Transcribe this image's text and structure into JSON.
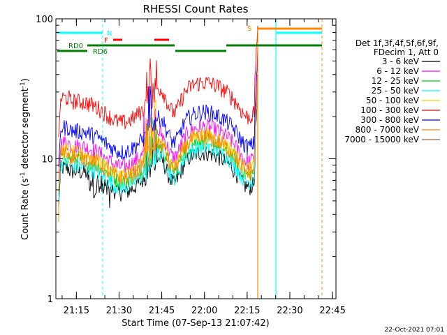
{
  "chart_data": {
    "type": "line",
    "title": "RHESSI Count Rates",
    "xlabel": "Start Time (07-Sep-13 21:07:42)",
    "ylabel": "Count Rate (s⁻¹ detector segment⁻¹)",
    "ylabel_main": "Count Rate (s",
    "ylabel_sup1": "-1",
    "ylabel_mid": " detector segment",
    "ylabel_sup2": "-1",
    "ylabel_end": ")",
    "yscale": "log",
    "ylim": [
      1,
      100
    ],
    "xlim_minutes": [
      21.13,
      22.77
    ],
    "x_tick_labels": [
      "21:15",
      "21:30",
      "21:45",
      "22:00",
      "22:15",
      "22:30",
      "22:45"
    ],
    "x_tick_values_hours": [
      21.25,
      21.5,
      21.75,
      22.0,
      22.25,
      22.5,
      22.75
    ],
    "y_tick_labels": [
      "1",
      "10",
      "100"
    ],
    "y_tick_values": [
      1,
      10,
      100
    ],
    "legend_header": [
      "Det 1f,3f,4f,5f,6f,9f,",
      "FDecim 1, Att 0"
    ],
    "legend_placement": "right",
    "series": [
      {
        "name": "3 - 6 keV",
        "color": "#000000",
        "base": 8.2
      },
      {
        "name": "6 - 12 keV",
        "color": "#ff00ff",
        "base": 12.5
      },
      {
        "name": "12 - 25 keV",
        "color": "#00cc00",
        "base": 10.0
      },
      {
        "name": "25 - 50 keV",
        "color": "#00ffff",
        "base": 9.0
      },
      {
        "name": "50 - 100 keV",
        "color": "#ffcc00",
        "base": 11.0
      },
      {
        "name": "100 - 300 keV",
        "color": "#ff0000",
        "base": 26.0
      },
      {
        "name": "300 - 800 keV",
        "color": "#0000ff",
        "base": 16.0
      },
      {
        "name": "800 - 7000 keV",
        "color": "#ff8800",
        "base": 10.5
      },
      {
        "name": "7000 - 15000 keV",
        "color": "#996633",
        "base": 0
      }
    ],
    "annotations": {
      "n_label": "N",
      "f_label": "F",
      "s_label": "S",
      "rd0_label": "RD0",
      "rd6_label": "RD6"
    },
    "timestamp": "22-Oct-2021 07:01"
  }
}
